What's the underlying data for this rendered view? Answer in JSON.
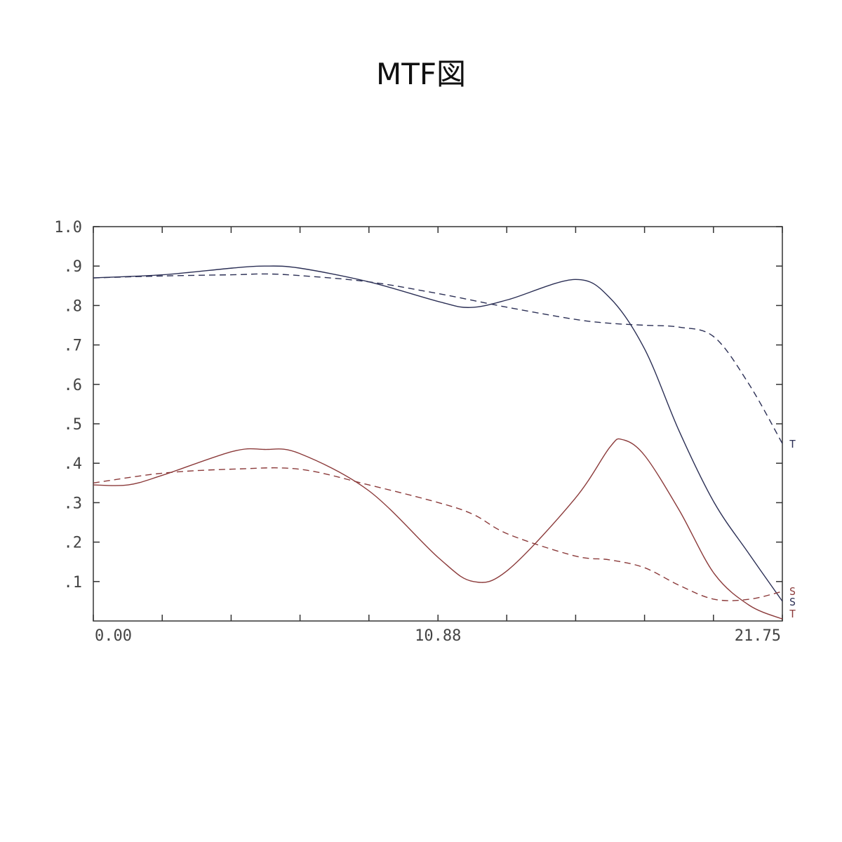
{
  "title": "MTF図",
  "chart_data": {
    "type": "line",
    "title": "MTF図",
    "xlabel": "",
    "ylabel": "",
    "xlim": [
      0,
      21.75
    ],
    "ylim": [
      0,
      1.0
    ],
    "x_tick_labels": [
      {
        "value": 0,
        "label": "0.00"
      },
      {
        "value": 10.88,
        "label": "10.88"
      },
      {
        "value": 21.75,
        "label": "21.75"
      }
    ],
    "y_tick_labels": [
      {
        "value": 1.0,
        "label": "1.0"
      },
      {
        "value": 0.9,
        "label": ".9"
      },
      {
        "value": 0.8,
        "label": ".8"
      },
      {
        "value": 0.7,
        "label": ".7"
      },
      {
        "value": 0.6,
        "label": ".6"
      },
      {
        "value": 0.5,
        "label": ".5"
      },
      {
        "value": 0.4,
        "label": ".4"
      },
      {
        "value": 0.3,
        "label": ".3"
      },
      {
        "value": 0.2,
        "label": ".2"
      },
      {
        "value": 0.1,
        "label": ".1"
      }
    ],
    "x_minor_ticks": [
      2.175,
      4.35,
      6.525,
      8.7,
      13.05,
      15.225,
      17.4,
      19.575
    ],
    "grid": false,
    "series": [
      {
        "end_label": "T",
        "color": "#2b2f55",
        "style": "solid",
        "x": [
          0,
          2.2,
          4.4,
          5.4,
          6.5,
          8.7,
          10.9,
          11.9,
          13.1,
          15.2,
          16.3,
          17.4,
          18.5,
          19.6,
          20.7,
          21.75
        ],
        "y": [
          0.87,
          0.878,
          0.895,
          0.9,
          0.895,
          0.86,
          0.81,
          0.795,
          0.815,
          0.866,
          0.82,
          0.69,
          0.48,
          0.3,
          0.17,
          0.05
        ]
      },
      {
        "end_label": "S",
        "color": "#2b2f55",
        "style": "dashed",
        "x": [
          0,
          2.2,
          4.4,
          5.4,
          6.5,
          8.7,
          10.9,
          13.1,
          15.2,
          16.3,
          17.4,
          18.5,
          19.6,
          20.7,
          21.75
        ],
        "y": [
          0.87,
          0.875,
          0.878,
          0.88,
          0.876,
          0.86,
          0.83,
          0.795,
          0.765,
          0.755,
          0.75,
          0.745,
          0.72,
          0.6,
          0.45
        ]
      },
      {
        "end_label": "T",
        "color": "#8b3a3a",
        "style": "solid",
        "x": [
          0,
          1.1,
          2.2,
          4.4,
          5.4,
          6.5,
          8.7,
          10.9,
          12.0,
          13.1,
          15.2,
          16.3,
          16.7,
          17.4,
          18.5,
          19.6,
          20.7,
          21.75
        ],
        "y": [
          0.345,
          0.345,
          0.37,
          0.43,
          0.435,
          0.425,
          0.33,
          0.16,
          0.1,
          0.13,
          0.31,
          0.44,
          0.46,
          0.42,
          0.28,
          0.12,
          0.04,
          0.005
        ]
      },
      {
        "end_label": "S",
        "color": "#8b3a3a",
        "style": "dashed",
        "x": [
          0,
          2.2,
          4.4,
          6.5,
          8.7,
          10.9,
          12.0,
          13.1,
          15.2,
          16.3,
          17.4,
          18.5,
          19.6,
          20.7,
          21.75
        ],
        "y": [
          0.35,
          0.375,
          0.385,
          0.385,
          0.345,
          0.3,
          0.27,
          0.22,
          0.165,
          0.155,
          0.135,
          0.09,
          0.055,
          0.055,
          0.075
        ]
      }
    ]
  }
}
